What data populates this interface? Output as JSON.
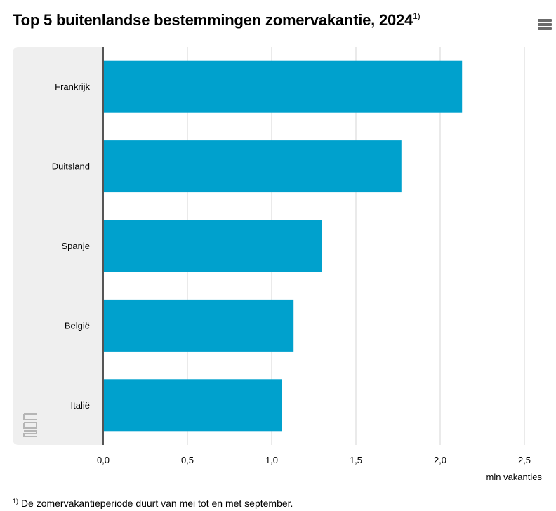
{
  "header": {
    "title": "Top 5 buitenlandse bestemmingen zomervakantie, 2024",
    "title_footnote_mark": "1)",
    "menu_icon": "hamburger-menu-icon"
  },
  "footnote": {
    "mark": "1)",
    "text": "De zomervakantieperiode duurt van mei tot en met september."
  },
  "logo": {
    "icon": "cbs-logo-icon",
    "text": "cbs"
  },
  "colors": {
    "bar": "#00a1cd",
    "panel": "#efefef",
    "grid": "#d6d6d6",
    "axis": "#555555",
    "logo": "#b5b5b5"
  },
  "chart_data": {
    "type": "bar",
    "orientation": "horizontal",
    "categories": [
      "Frankrijk",
      "Duitsland",
      "Spanje",
      "België",
      "Italië"
    ],
    "values": [
      2.13,
      1.77,
      1.3,
      1.13,
      1.06
    ],
    "title": "Top 5 buitenlandse bestemmingen zomervakantie, 2024",
    "xlabel": "mln vakanties",
    "ylabel": "",
    "xlim": [
      0,
      2.5
    ],
    "ticks": [
      0,
      0.5,
      1.0,
      1.5,
      2.0,
      2.5
    ],
    "tick_labels": [
      "0,0",
      "0,5",
      "1,0",
      "1,5",
      "2,0",
      "2,5"
    ],
    "grid": true,
    "legend": "none"
  }
}
